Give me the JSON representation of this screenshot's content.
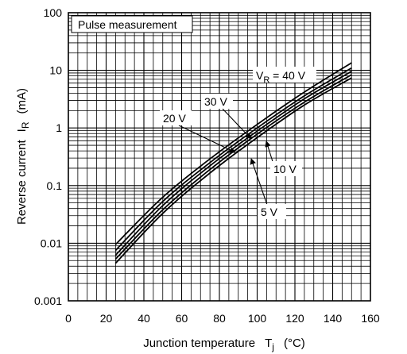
{
  "chart_data": {
    "type": "line",
    "title": "Pulse measurement",
    "xlabel_main": "Junction temperature",
    "xlabel_symbol": "T",
    "xlabel_sub": "j",
    "xlabel_unit": "(°C)",
    "ylabel_main": "Reverse current",
    "ylabel_symbol": "I",
    "ylabel_sub": "R",
    "ylabel_unit": "(mA)",
    "xlim": [
      0,
      160
    ],
    "ylim": [
      0.001,
      100
    ],
    "yscale": "log",
    "grid": true,
    "x_ticks": [
      "0",
      "20",
      "40",
      "60",
      "80",
      "100",
      "120",
      "140",
      "160"
    ],
    "y_ticks": [
      "0.001",
      "0.01",
      "0.1",
      "1",
      "10",
      "100"
    ],
    "series": [
      {
        "name": "V_R = 40 V",
        "x": [
          25,
          50,
          75,
          100,
          125,
          150
        ],
        "y": [
          0.0095,
          0.063,
          0.29,
          1.15,
          4.2,
          13.5
        ]
      },
      {
        "name": "30 V",
        "x": [
          25,
          50,
          75,
          100,
          125,
          150
        ],
        "y": [
          0.0075,
          0.053,
          0.25,
          1.0,
          3.6,
          11.0
        ]
      },
      {
        "name": "20 V",
        "x": [
          25,
          50,
          75,
          100,
          125,
          150
        ],
        "y": [
          0.0062,
          0.045,
          0.22,
          0.88,
          3.2,
          9.6
        ]
      },
      {
        "name": "10 V",
        "x": [
          25,
          50,
          75,
          100,
          125,
          150
        ],
        "y": [
          0.0053,
          0.038,
          0.19,
          0.78,
          2.8,
          8.4
        ]
      },
      {
        "name": "5 V",
        "x": [
          25,
          50,
          75,
          100,
          125,
          150
        ],
        "y": [
          0.0045,
          0.033,
          0.165,
          0.68,
          2.5,
          7.4
        ]
      }
    ],
    "annotations": {
      "vr40": {
        "main": "V",
        "sub": "R",
        "rest": " = 40 V"
      },
      "v30": "30 V",
      "v20": "20 V",
      "v10": "10 V",
      "v5": "5 V"
    }
  }
}
